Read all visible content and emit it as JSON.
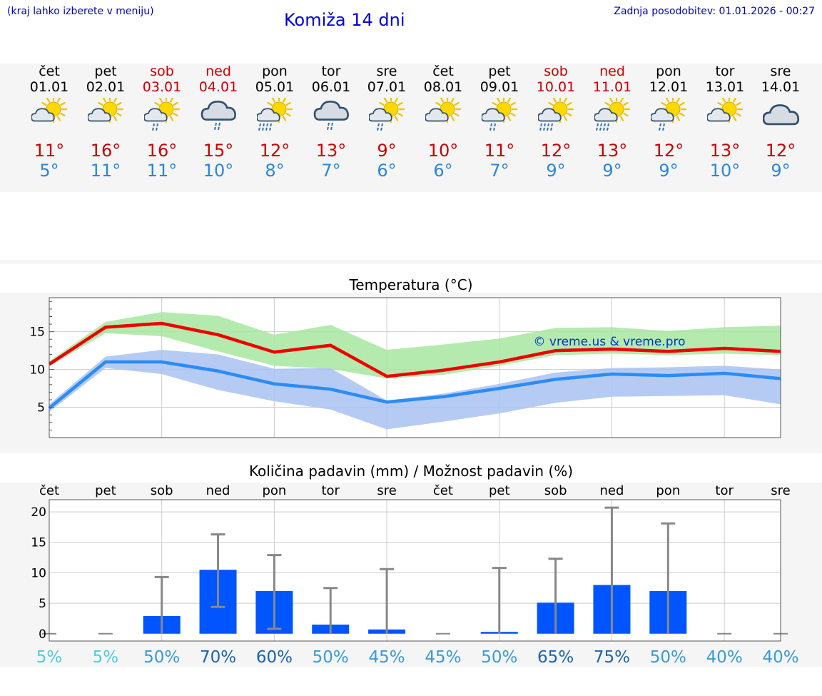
{
  "header": {
    "hint": "(kraj lahko izberete v meniju)",
    "title": "Komiža 14 dni",
    "updated": "Zadnja posodobitev: 01.01.2026 - 00:27"
  },
  "days": [
    {
      "name": "čet",
      "date": "01.01",
      "weekend": false,
      "icon": "sun-cloud-icon",
      "max": "11°",
      "min": "5°"
    },
    {
      "name": "pet",
      "date": "02.01",
      "weekend": false,
      "icon": "sun-cloud-icon",
      "max": "16°",
      "min": "11°"
    },
    {
      "name": "sob",
      "date": "03.01",
      "weekend": true,
      "icon": "sun-cloud-rain-icon",
      "max": "16°",
      "min": "11°"
    },
    {
      "name": "ned",
      "date": "04.01",
      "weekend": true,
      "icon": "cloud-rain-icon",
      "max": "15°",
      "min": "10°"
    },
    {
      "name": "pon",
      "date": "05.01",
      "weekend": false,
      "icon": "sun-cloud-heavy-rain-icon",
      "max": "12°",
      "min": "8°"
    },
    {
      "name": "tor",
      "date": "06.01",
      "weekend": false,
      "icon": "cloud-rain-icon",
      "max": "13°",
      "min": "7°"
    },
    {
      "name": "sre",
      "date": "07.01",
      "weekend": false,
      "icon": "sun-cloud-rain-icon",
      "max": "9°",
      "min": "6°"
    },
    {
      "name": "čet",
      "date": "08.01",
      "weekend": false,
      "icon": "sun-cloud-icon",
      "max": "10°",
      "min": "6°"
    },
    {
      "name": "pet",
      "date": "09.01",
      "weekend": false,
      "icon": "sun-cloud-rain-icon",
      "max": "11°",
      "min": "7°"
    },
    {
      "name": "sob",
      "date": "10.01",
      "weekend": true,
      "icon": "sun-cloud-heavy-rain-icon",
      "max": "12°",
      "min": "9°"
    },
    {
      "name": "ned",
      "date": "11.01",
      "weekend": true,
      "icon": "sun-cloud-heavy-rain-icon",
      "max": "13°",
      "min": "9°"
    },
    {
      "name": "pon",
      "date": "12.01",
      "weekend": false,
      "icon": "sun-cloud-rain-icon",
      "max": "12°",
      "min": "9°"
    },
    {
      "name": "tor",
      "date": "13.01",
      "weekend": false,
      "icon": "sun-cloud-icon",
      "max": "13°",
      "min": "10°"
    },
    {
      "name": "sre",
      "date": "14.01",
      "weekend": false,
      "icon": "cloud-icon",
      "max": "12°",
      "min": "9°"
    }
  ],
  "colors": {
    "max_line": "#ee0000",
    "min_line": "#2a8cf5",
    "max_band": "#a8e6a0",
    "min_band": "#a9c2f2",
    "overlap": "#7cc4a8",
    "bar": "#0055ff",
    "whisker": "#888888"
  },
  "chart_data": [
    {
      "type": "line",
      "title": "Temperatura (°C)",
      "watermark": "© vreme.us & vreme.pro",
      "ylim": [
        1,
        19.5
      ],
      "yticks": [
        5,
        10,
        15
      ],
      "x": [
        0,
        1,
        2,
        3,
        4,
        5,
        6,
        7,
        8,
        9,
        10,
        11,
        12,
        13
      ],
      "series": [
        {
          "name": "max",
          "values": [
            10.7,
            15.6,
            16.1,
            14.6,
            12.3,
            13.2,
            9.1,
            9.9,
            11.0,
            12.5,
            12.7,
            12.4,
            12.8,
            12.4
          ]
        },
        {
          "name": "min",
          "values": [
            4.9,
            11.0,
            11.0,
            9.8,
            8.1,
            7.4,
            5.7,
            6.4,
            7.5,
            8.7,
            9.4,
            9.2,
            9.5,
            8.8
          ]
        },
        {
          "name": "max_range_low",
          "values": [
            10.4,
            14.8,
            14.4,
            12.4,
            10.5,
            10.1,
            8.8,
            9.3,
            10.5,
            11.9,
            12.1,
            11.9,
            12.1,
            11.9
          ]
        },
        {
          "name": "max_range_high",
          "values": [
            11.1,
            16.3,
            17.6,
            17.1,
            14.6,
            15.9,
            12.6,
            13.3,
            14.1,
            15.5,
            15.6,
            15.1,
            15.6,
            15.8
          ]
        },
        {
          "name": "min_range_low",
          "values": [
            4.4,
            10.2,
            9.4,
            7.3,
            5.8,
            4.7,
            2.1,
            3.1,
            4.2,
            5.6,
            6.4,
            6.5,
            6.6,
            5.4
          ]
        },
        {
          "name": "min_range_high",
          "values": [
            5.4,
            11.7,
            12.6,
            12.0,
            10.1,
            10.2,
            5.9,
            6.8,
            8.1,
            9.6,
            10.2,
            10.3,
            10.5,
            10.0
          ]
        }
      ]
    },
    {
      "type": "bar",
      "title": "Količina padavin (mm) / Možnost padavin (%)",
      "categories": [
        "čet",
        "pet",
        "sob",
        "ned",
        "pon",
        "tor",
        "sre",
        "čet",
        "pet",
        "sob",
        "ned",
        "pon",
        "tor",
        "sre"
      ],
      "ylim": [
        -1.2,
        22
      ],
      "yticks": [
        0,
        5,
        10,
        15,
        20
      ],
      "values": [
        0,
        0,
        2.9,
        10.5,
        7.0,
        1.5,
        0.7,
        0,
        0.3,
        5.1,
        8.0,
        7.0,
        0,
        0
      ],
      "range_low": [
        0,
        0,
        0,
        4.4,
        0.8,
        0,
        0,
        0,
        0,
        0,
        0,
        0,
        0,
        0
      ],
      "range_high": [
        0,
        0,
        9.3,
        16.3,
        12.9,
        7.5,
        10.6,
        0,
        10.8,
        12.3,
        20.7,
        18.1,
        0,
        0
      ],
      "probability": [
        "5%",
        "5%",
        "50%",
        "70%",
        "60%",
        "50%",
        "45%",
        "45%",
        "50%",
        "65%",
        "75%",
        "50%",
        "40%",
        "40%"
      ],
      "probability_values": [
        5,
        5,
        50,
        70,
        60,
        50,
        45,
        45,
        50,
        65,
        75,
        50,
        40,
        40
      ]
    }
  ]
}
